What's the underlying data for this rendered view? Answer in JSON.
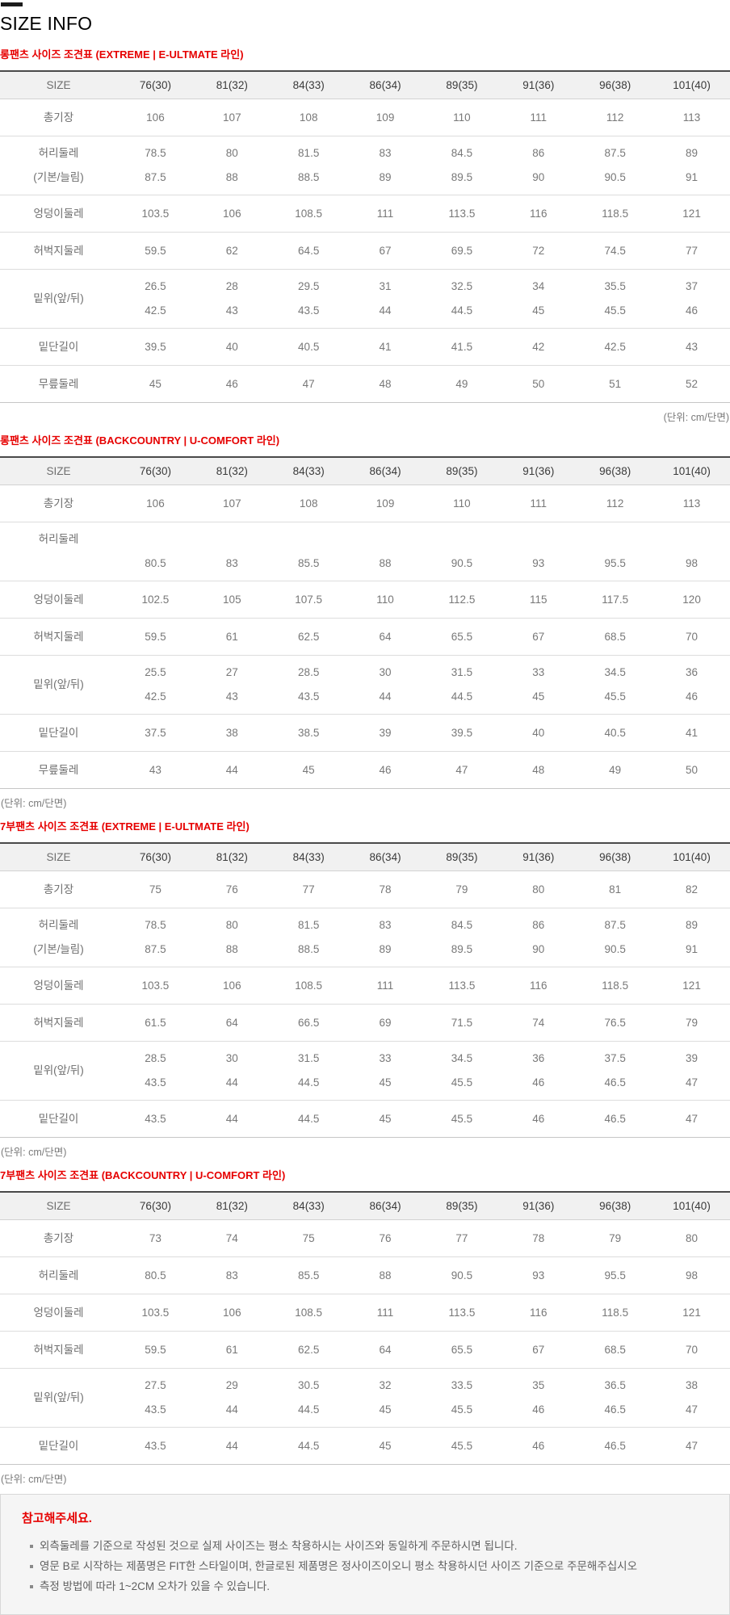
{
  "page": {
    "title": "SIZE INFO"
  },
  "colors": {
    "accent_red": "#e60000",
    "table_header_bg": "#f1f1f1",
    "notice_bg": "#f5f5f5"
  },
  "unit_note": "(단위: cm/단면)",
  "columns": [
    "SIZE",
    "76(30)",
    "81(32)",
    "84(33)",
    "86(34)",
    "89(35)",
    "91(36)",
    "96(38)",
    "101(40)"
  ],
  "tables": [
    {
      "title": "롱팬츠 사이즈 조견표 (EXTREME | E-ULTMATE 라인)",
      "unit_align": "right",
      "rows": [
        {
          "label": [
            "총기장"
          ],
          "values": [
            [
              "106",
              "107",
              "108",
              "109",
              "110",
              "111",
              "112",
              "113"
            ]
          ]
        },
        {
          "label": [
            "허리둘레",
            "(기본/늘림)"
          ],
          "values": [
            [
              "78.5",
              "80",
              "81.5",
              "83",
              "84.5",
              "86",
              "87.5",
              "89"
            ],
            [
              "87.5",
              "88",
              "88.5",
              "89",
              "89.5",
              "90",
              "90.5",
              "91"
            ]
          ]
        },
        {
          "label": [
            "엉덩이둘레"
          ],
          "values": [
            [
              "103.5",
              "106",
              "108.5",
              "111",
              "113.5",
              "116",
              "118.5",
              "121"
            ]
          ]
        },
        {
          "label": [
            "허벅지둘레"
          ],
          "values": [
            [
              "59.5",
              "62",
              "64.5",
              "67",
              "69.5",
              "72",
              "74.5",
              "77"
            ]
          ]
        },
        {
          "label": [
            "밑위(앞/뒤)"
          ],
          "values": [
            [
              "26.5",
              "28",
              "29.5",
              "31",
              "32.5",
              "34",
              "35.5",
              "37"
            ],
            [
              "42.5",
              "43",
              "43.5",
              "44",
              "44.5",
              "45",
              "45.5",
              "46"
            ]
          ]
        },
        {
          "label": [
            "밑단길이"
          ],
          "values": [
            [
              "39.5",
              "40",
              "40.5",
              "41",
              "41.5",
              "42",
              "42.5",
              "43"
            ]
          ]
        },
        {
          "label": [
            "무릎둘레"
          ],
          "values": [
            [
              "45",
              "46",
              "47",
              "48",
              "49",
              "50",
              "51",
              "52"
            ]
          ]
        }
      ]
    },
    {
      "title": "롱팬츠 사이즈 조견표 (BACKCOUNTRY | U-COMFORT 라인)",
      "unit_align": "left",
      "rows": [
        {
          "label": [
            "총기장"
          ],
          "values": [
            [
              "106",
              "107",
              "108",
              "109",
              "110",
              "111",
              "112",
              "113"
            ]
          ]
        },
        {
          "label": [
            "허리둘레",
            ""
          ],
          "values": [
            [
              "",
              "",
              "",
              "",
              "",
              "",
              "",
              ""
            ],
            [
              "80.5",
              "83",
              "85.5",
              "88",
              "90.5",
              "93",
              "95.5",
              "98"
            ]
          ]
        },
        {
          "label": [
            "엉덩이둘레"
          ],
          "values": [
            [
              "102.5",
              "105",
              "107.5",
              "110",
              "112.5",
              "115",
              "117.5",
              "120"
            ]
          ]
        },
        {
          "label": [
            "허벅지둘레"
          ],
          "values": [
            [
              "59.5",
              "61",
              "62.5",
              "64",
              "65.5",
              "67",
              "68.5",
              "70"
            ]
          ]
        },
        {
          "label": [
            "밑위(앞/뒤)"
          ],
          "values": [
            [
              "25.5",
              "27",
              "28.5",
              "30",
              "31.5",
              "33",
              "34.5",
              "36"
            ],
            [
              "42.5",
              "43",
              "43.5",
              "44",
              "44.5",
              "45",
              "45.5",
              "46"
            ]
          ]
        },
        {
          "label": [
            "밑단길이"
          ],
          "values": [
            [
              "37.5",
              "38",
              "38.5",
              "39",
              "39.5",
              "40",
              "40.5",
              "41"
            ]
          ]
        },
        {
          "label": [
            "무릎둘레"
          ],
          "values": [
            [
              "43",
              "44",
              "45",
              "46",
              "47",
              "48",
              "49",
              "50"
            ]
          ]
        }
      ]
    },
    {
      "title": "7부팬츠 사이즈 조견표 (EXTREME | E-ULTMATE 라인)",
      "unit_align": "left",
      "rows": [
        {
          "label": [
            "총기장"
          ],
          "values": [
            [
              "75",
              "76",
              "77",
              "78",
              "79",
              "80",
              "81",
              "82"
            ]
          ]
        },
        {
          "label": [
            "허리둘레",
            "(기본/늘림)"
          ],
          "values": [
            [
              "78.5",
              "80",
              "81.5",
              "83",
              "84.5",
              "86",
              "87.5",
              "89"
            ],
            [
              "87.5",
              "88",
              "88.5",
              "89",
              "89.5",
              "90",
              "90.5",
              "91"
            ]
          ]
        },
        {
          "label": [
            "엉덩이둘레"
          ],
          "values": [
            [
              "103.5",
              "106",
              "108.5",
              "111",
              "113.5",
              "116",
              "118.5",
              "121"
            ]
          ]
        },
        {
          "label": [
            "허벅지둘레"
          ],
          "values": [
            [
              "61.5",
              "64",
              "66.5",
              "69",
              "71.5",
              "74",
              "76.5",
              "79"
            ]
          ]
        },
        {
          "label": [
            "밑위(앞/뒤)"
          ],
          "values": [
            [
              "28.5",
              "30",
              "31.5",
              "33",
              "34.5",
              "36",
              "37.5",
              "39"
            ],
            [
              "43.5",
              "44",
              "44.5",
              "45",
              "45.5",
              "46",
              "46.5",
              "47"
            ]
          ]
        },
        {
          "label": [
            "밑단길이"
          ],
          "values": [
            [
              "43.5",
              "44",
              "44.5",
              "45",
              "45.5",
              "46",
              "46.5",
              "47"
            ]
          ]
        }
      ]
    },
    {
      "title": "7부팬츠 사이즈 조견표 (BACKCOUNTRY | U-COMFORT 라인)",
      "unit_align": "left",
      "rows": [
        {
          "label": [
            "총기장"
          ],
          "values": [
            [
              "73",
              "74",
              "75",
              "76",
              "77",
              "78",
              "79",
              "80"
            ]
          ]
        },
        {
          "label": [
            "허리둘레"
          ],
          "values": [
            [
              "80.5",
              "83",
              "85.5",
              "88",
              "90.5",
              "93",
              "95.5",
              "98"
            ]
          ]
        },
        {
          "label": [
            "엉덩이둘레"
          ],
          "values": [
            [
              "103.5",
              "106",
              "108.5",
              "111",
              "113.5",
              "116",
              "118.5",
              "121"
            ]
          ]
        },
        {
          "label": [
            "허벅지둘레"
          ],
          "values": [
            [
              "59.5",
              "61",
              "62.5",
              "64",
              "65.5",
              "67",
              "68.5",
              "70"
            ]
          ]
        },
        {
          "label": [
            "밑위(앞/뒤)"
          ],
          "values": [
            [
              "27.5",
              "29",
              "30.5",
              "32",
              "33.5",
              "35",
              "36.5",
              "38"
            ],
            [
              "43.5",
              "44",
              "44.5",
              "45",
              "45.5",
              "46",
              "46.5",
              "47"
            ]
          ]
        },
        {
          "label": [
            "밑단길이"
          ],
          "values": [
            [
              "43.5",
              "44",
              "44.5",
              "45",
              "45.5",
              "46",
              "46.5",
              "47"
            ]
          ]
        }
      ]
    }
  ],
  "notice": {
    "title": "참고해주세요.",
    "bullets": [
      "외측둘레를 기준으로 작성된 것으로 실제 사이즈는 평소 착용하시는 사이즈와 동일하게 주문하시면 됩니다.",
      "영문 B로 시작하는 제품명은 FIT한 스타일이며, 한글로된 제품명은 정사이즈이오니 평소 착용하시던 사이즈 기준으로 주문해주십시오",
      "측정 방법에 따라 1~2CM 오차가 있을 수 있습니다."
    ]
  }
}
